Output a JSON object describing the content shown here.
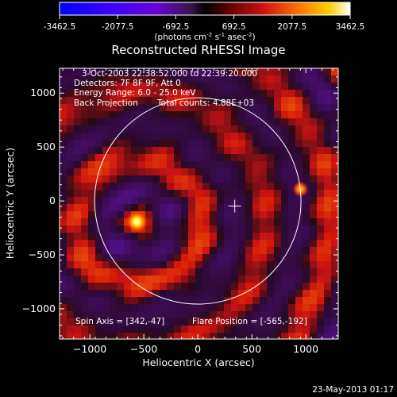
{
  "chart_data": {
    "type": "heatmap",
    "title": "Reconstructed RHESSI Image",
    "xlabel": "Heliocentric X (arcsec)",
    "ylabel": "Heliocentric Y (arcsec)",
    "xlim": [
      -1280,
      1300
    ],
    "ylim": [
      -1280,
      1230
    ],
    "xticks": [
      -1000,
      -500,
      0,
      500,
      1000
    ],
    "yticks": [
      -1000,
      -500,
      0,
      500,
      1000
    ],
    "colorbar": {
      "min": -3462.5,
      "max": 3462.5,
      "ticks": [
        "-3462.5",
        "-2077.5",
        "-692.5",
        "692.5",
        "2077.5",
        "3462.5"
      ],
      "unit_prefix": "(photons cm",
      "unit_exp1": "-2",
      "unit_mid": " s",
      "unit_exp2": "-1",
      "unit_suffix": " asec",
      "unit_exp3": "-2",
      "unit_end": ")"
    },
    "annotations": {
      "time_range": "3-Oct-2003 22:38:52.000 to 22:39:20.000",
      "detectors": "Detectors: 7F 8F 9F, Att 0",
      "energy": "Energy Range: 6.0 - 25.0 keV",
      "method": "Back Projection",
      "counts": "Total counts: 4.88E+03",
      "spin_axis": "Spin Axis = [342,-47]",
      "flare_position": "Flare Position = [-565,-192]"
    },
    "sun_center": [
      0,
      0
    ],
    "sun_radius": 955,
    "spin_axis": [
      342,
      -47
    ],
    "flare_position": [
      -565,
      -192
    ],
    "secondary_source": [
      950,
      110
    ],
    "footer_date": "23-May-2013 01:17"
  }
}
